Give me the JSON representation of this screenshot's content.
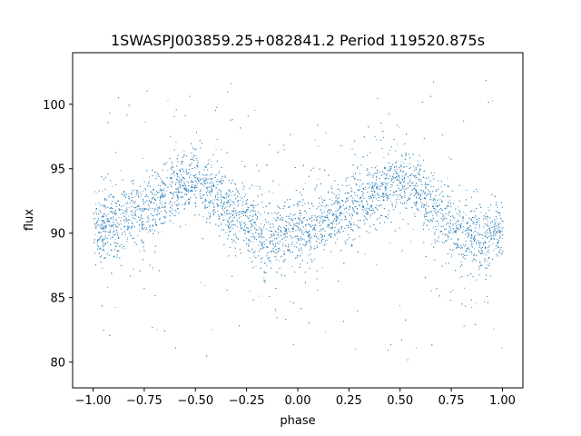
{
  "chart_data": {
    "type": "scatter",
    "title": "1SWASPJ003859.25+082841.2 Period 119520.875s",
    "xlabel": "phase",
    "ylabel": "flux",
    "xlim": [
      -1.1,
      1.1
    ],
    "ylim": [
      78,
      104
    ],
    "xticks": [
      -1.0,
      -0.75,
      -0.5,
      -0.25,
      0.0,
      0.25,
      0.5,
      0.75,
      1.0
    ],
    "xtick_labels": [
      "−1.00",
      "−0.75",
      "−0.50",
      "−0.25",
      "0.00",
      "0.25",
      "0.50",
      "0.75",
      "1.00"
    ],
    "yticks": [
      80,
      85,
      90,
      95,
      100
    ],
    "ytick_labels": [
      "80",
      "85",
      "90",
      "95",
      "100"
    ],
    "grid": false,
    "marker_color": "#1f77b4",
    "series": [
      {
        "profile_phase": [
          -1.0,
          -0.9,
          -0.8,
          -0.7,
          -0.6,
          -0.5,
          -0.4,
          -0.3,
          -0.2,
          -0.1,
          0.0,
          0.1,
          0.2,
          0.3,
          0.4,
          0.5,
          0.6,
          0.7,
          0.8,
          0.9,
          1.0
        ],
        "profile_flux": [
          90.5,
          90.8,
          91.4,
          92.6,
          93.6,
          94.2,
          93.0,
          91.5,
          90.0,
          89.6,
          90.1,
          90.6,
          91.4,
          92.6,
          93.6,
          94.2,
          93.0,
          91.3,
          89.9,
          89.5,
          90.3
        ]
      }
    ]
  }
}
